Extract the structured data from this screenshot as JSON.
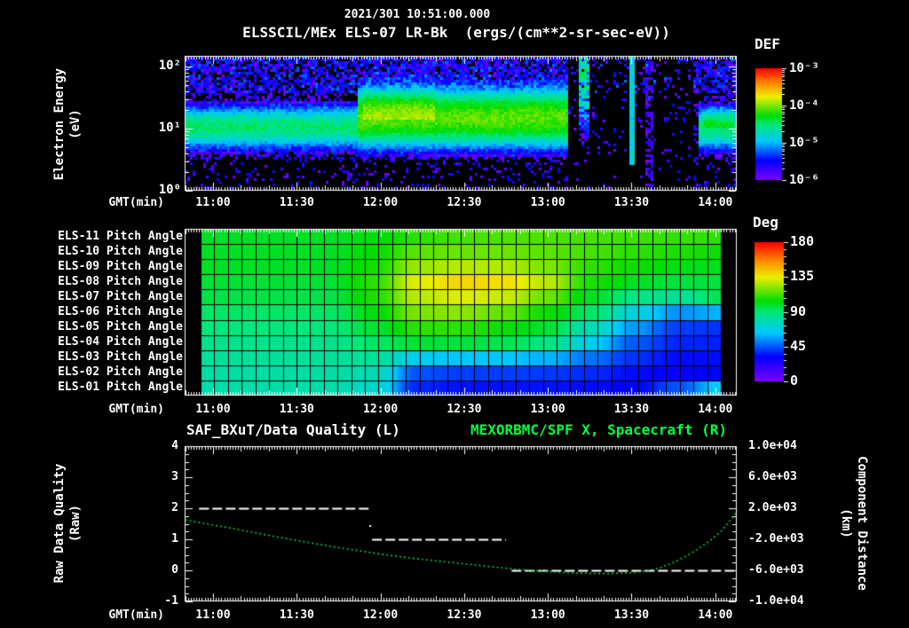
{
  "figure": {
    "title": "2021/301 10:51:00.000",
    "subtitle": "ELSSCIL/MEx ELS-07 LR-Bk  (ergs/(cm**2-sr-sec-eV))",
    "xlabel": "GMT(min)",
    "time_tick_labels": [
      "11:00",
      "11:30",
      "12:00",
      "12:30",
      "13:00",
      "13:30",
      "14:00"
    ]
  },
  "spectrogram_panel": {
    "ylabel_line1": "Electron Energy",
    "ylabel_line2": "(eV)",
    "y_tick_labels": [
      "10²",
      "10¹",
      "10⁰"
    ],
    "colorbar_title": "DEF",
    "colorbar_tick_labels": [
      "10⁻³",
      "10⁻⁴",
      "10⁻⁵",
      "10⁻⁶"
    ]
  },
  "pitch_panel": {
    "row_labels": [
      "ELS-11 Pitch Angle",
      "ELS-10 Pitch Angle",
      "ELS-09 Pitch Angle",
      "ELS-08 Pitch Angle",
      "ELS-07 Pitch Angle",
      "ELS-06 Pitch Angle",
      "ELS-05 Pitch Angle",
      "ELS-04 Pitch Angle",
      "ELS-03 Pitch Angle",
      "ELS-02 Pitch Angle",
      "ELS-01 Pitch Angle"
    ],
    "colorbar_title": "Deg",
    "colorbar_tick_labels": [
      "180",
      "135",
      "90",
      "45",
      "0"
    ]
  },
  "timeseries_panel": {
    "title_left": "SAF_BXuT/Data Quality (L)",
    "title_right": "MEXORBMC/SPF X, Spacecraft (R)",
    "ylabel_left_line1": "Raw Data Quality",
    "ylabel_left_line2": "(Raw)",
    "ylabel_right_line1": "Component Distance",
    "ylabel_right_line2": "(km)",
    "left_tick_labels": [
      "4",
      "3",
      "2",
      "1",
      "0",
      "-1"
    ],
    "right_tick_labels": [
      "1.0e+04",
      "6.0e+03",
      "2.0e+03",
      "-2.0e+03",
      "-6.0e+03",
      "-1.0e+04"
    ]
  },
  "colors": {
    "background": "#000000",
    "axis_text": "#ffffff",
    "right_series_title": "#00ff41",
    "spacecraft_curve": "#00cc44",
    "quality_line": "#ffffff"
  },
  "chart_data": [
    {
      "type": "heatmap",
      "name": "electron-energy-spectrogram",
      "title": "ELSSCIL/MEx ELS-07 LR-Bk",
      "units": "ergs/(cm**2-sr-sec-eV)",
      "x_range_gmt": [
        "10:51",
        "14:08"
      ],
      "y_scale": "log",
      "y_range_ev": [
        1,
        150
      ],
      "colorbar": {
        "label": "DEF",
        "scale": "log",
        "range": [
          1e-06,
          0.001
        ]
      },
      "features": [
        {
          "kind": "noise-background",
          "intensity_range": [
            1e-06,
            4e-06
          ]
        },
        {
          "kind": "band",
          "gmt": [
            "10:51",
            "11:52"
          ],
          "center_ev": 10,
          "intensity": 3.2e-05
        },
        {
          "kind": "enhanced-band",
          "gmt": [
            "11:52",
            "13:07"
          ],
          "center_ev": 15,
          "intensity": 0.00012
        },
        {
          "kind": "dropout",
          "gmt": [
            "13:07",
            "13:52"
          ]
        },
        {
          "kind": "vertical-streak",
          "gmt": "13:13",
          "center_ev": 70,
          "intensity": 4.5e-05
        },
        {
          "kind": "vertical-streak",
          "gmt": "13:30",
          "center_ev": 10,
          "intensity": 1.6e-05
        },
        {
          "kind": "blob",
          "gmt": [
            "13:54",
            "14:08"
          ],
          "center_ev": 10,
          "intensity": 3.2e-05
        }
      ]
    },
    {
      "type": "heatmap",
      "name": "pitch-angle-panels",
      "row_labels_top_to_bottom": [
        "ELS-11",
        "ELS-10",
        "ELS-09",
        "ELS-08",
        "ELS-07",
        "ELS-06",
        "ELS-05",
        "ELS-04",
        "ELS-03",
        "ELS-02",
        "ELS-01"
      ],
      "columns_gmt": [
        "10:57",
        "11:12",
        "11:28",
        "11:43",
        "11:58",
        "12:14",
        "12:29",
        "12:44",
        "13:00",
        "13:15",
        "13:31",
        "13:46",
        "14:02"
      ],
      "values_deg": [
        [
          100,
          100,
          100,
          100,
          103,
          110,
          113,
          114,
          114,
          113,
          112,
          111,
          110
        ],
        [
          100,
          100,
          100,
          100,
          105,
          116,
          118,
          118,
          116,
          113,
          110,
          108,
          106
        ],
        [
          100,
          100,
          100,
          100,
          107,
          124,
          128,
          127,
          120,
          110,
          106,
          102,
          101
        ],
        [
          98,
          98,
          98,
          98,
          110,
          133,
          140,
          138,
          128,
          108,
          100,
          97,
          97
        ],
        [
          96,
          96,
          96,
          96,
          108,
          128,
          133,
          130,
          118,
          100,
          88,
          84,
          95
        ],
        [
          92,
          92,
          92,
          92,
          103,
          120,
          122,
          117,
          106,
          92,
          70,
          55,
          60
        ],
        [
          89,
          89,
          89,
          89,
          98,
          110,
          110,
          106,
          98,
          78,
          56,
          42,
          40
        ],
        [
          86,
          86,
          86,
          86,
          92,
          98,
          97,
          95,
          88,
          66,
          46,
          38,
          37
        ],
        [
          83,
          83,
          83,
          83,
          84,
          66,
          63,
          63,
          60,
          50,
          40,
          34,
          34
        ],
        [
          81,
          81,
          81,
          81,
          78,
          45,
          42,
          42,
          41,
          39,
          34,
          31,
          33
        ],
        [
          80,
          80,
          80,
          80,
          74,
          38,
          35,
          35,
          35,
          34,
          32,
          45,
          65
        ]
      ],
      "colorbar": {
        "label": "Deg",
        "range": [
          0,
          180
        ]
      }
    },
    {
      "type": "line",
      "name": "quality-and-spacecraft-distance",
      "series": [
        {
          "name": "SAF_BXuT/Data Quality (L)",
          "axis": "left",
          "style": "white-dashed-steps",
          "segments": [
            {
              "gmt_start": "10:55",
              "gmt_end": "11:56",
              "value": 2
            },
            {
              "gmt_start": "11:57",
              "gmt_end": "12:45",
              "value": 1
            },
            {
              "gmt_start": "12:47",
              "gmt_end": "14:07",
              "value": 0
            }
          ],
          "isolated_point": {
            "gmt": "11:56",
            "value": 1.45
          }
        },
        {
          "name": "MEXORBMC/SPF X, Spacecraft (R)",
          "axis": "right",
          "style": "green-dotted",
          "points_min_km": [
            [
              -10,
              500
            ],
            [
              0,
              -150
            ],
            [
              10,
              -800
            ],
            [
              20,
              -1500
            ],
            [
              30,
              -2150
            ],
            [
              40,
              -2780
            ],
            [
              50,
              -3350
            ],
            [
              60,
              -3900
            ],
            [
              70,
              -4380
            ],
            [
              80,
              -4780
            ],
            [
              90,
              -5150
            ],
            [
              100,
              -5550
            ],
            [
              110,
              -5900
            ],
            [
              120,
              -6150
            ],
            [
              130,
              -6350
            ],
            [
              140,
              -6420
            ],
            [
              150,
              -6300
            ],
            [
              155,
              -6100
            ],
            [
              160,
              -5700
            ],
            [
              165,
              -5000
            ],
            [
              170,
              -4100
            ],
            [
              174,
              -3200
            ],
            [
              178,
              -2200
            ],
            [
              182,
              -1000
            ],
            [
              185,
              300
            ],
            [
              188,
              1700
            ]
          ]
        }
      ],
      "left_axis": {
        "label": "Raw Data Quality (Raw)",
        "range": [
          -1,
          4
        ]
      },
      "right_axis": {
        "label": "Component Distance (km)",
        "range": [
          -10000,
          10000
        ]
      },
      "x_axis": {
        "label": "GMT(min)",
        "minutes_from_1100": [
          -10.2,
          187.7
        ]
      }
    }
  ]
}
